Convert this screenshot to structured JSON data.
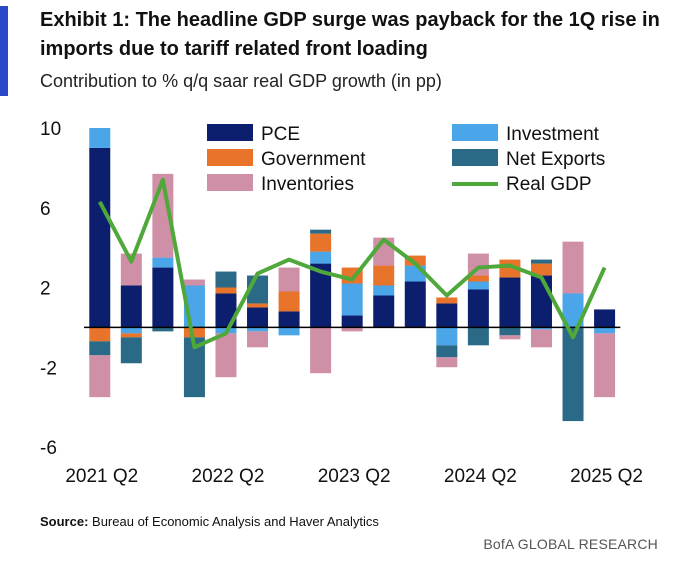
{
  "header": {
    "title": "Exhibit 1: The headline GDP surge was payback for the 1Q rise in imports due to tariff related front loading",
    "subtitle": "Contribution to % q/q saar real GDP growth (in pp)"
  },
  "footer": {
    "source_label": "Source:",
    "source_text": "Bureau of Economic Analysis and Haver Analytics",
    "brand": "BofA GLOBAL RESEARCH"
  },
  "colors": {
    "accent": "#2a49c8",
    "PCE": "#0c1f6e",
    "Investment": "#4aa6e8",
    "Government": "#e8732a",
    "Net Exports": "#2a6a86",
    "Inventories": "#cf8fa6",
    "Real GDP": "#4fa83a"
  },
  "chart_data": {
    "type": "bar",
    "stacked": true,
    "categories": [
      "2021 Q2",
      "2021 Q3",
      "2021 Q4",
      "2022 Q1",
      "2022 Q2",
      "2022 Q3",
      "2022 Q4",
      "2023 Q1",
      "2023 Q2",
      "2023 Q3",
      "2023 Q4",
      "2024 Q1",
      "2024 Q2",
      "2024 Q3",
      "2024 Q4",
      "2025 Q1",
      "2025 Q2"
    ],
    "x_tick_labels": [
      "2021 Q2",
      "2022 Q2",
      "2023 Q2",
      "2024 Q2",
      "2025 Q2"
    ],
    "y_ticks": [
      10,
      6,
      2,
      -2,
      -6
    ],
    "ylim": [
      -6,
      10
    ],
    "legend_placement": "top",
    "series": [
      {
        "name": "PCE",
        "values": [
          9.0,
          2.1,
          3.0,
          0.0,
          1.7,
          1.0,
          0.8,
          3.2,
          0.6,
          1.6,
          2.3,
          1.2,
          1.9,
          2.5,
          2.6,
          0.0,
          0.9
        ]
      },
      {
        "name": "Investment",
        "values": [
          1.0,
          -0.3,
          0.5,
          2.1,
          -0.3,
          -0.2,
          -0.4,
          0.6,
          1.6,
          0.5,
          0.8,
          -0.9,
          0.4,
          0.0,
          -0.1,
          1.7,
          -0.3
        ]
      },
      {
        "name": "Government",
        "values": [
          -0.7,
          -0.2,
          0.0,
          -0.5,
          0.3,
          0.2,
          1.0,
          0.9,
          0.8,
          1.0,
          0.5,
          0.3,
          0.3,
          0.9,
          0.6,
          0.0,
          0.0
        ]
      },
      {
        "name": "Net Exports",
        "values": [
          -0.7,
          -1.3,
          -0.2,
          -3.0,
          0.8,
          1.4,
          0.0,
          0.2,
          0.0,
          0.0,
          0.0,
          -0.6,
          -0.9,
          -0.4,
          0.2,
          -4.7,
          0.0
        ]
      },
      {
        "name": "Inventories",
        "values": [
          -2.1,
          1.6,
          4.2,
          0.3,
          -2.2,
          -0.8,
          1.2,
          -2.3,
          -0.2,
          1.4,
          0.0,
          -0.5,
          1.1,
          -0.2,
          -0.9,
          2.6,
          -3.2
        ]
      },
      {
        "name": "Real GDP",
        "type": "line",
        "values": [
          6.3,
          3.3,
          7.4,
          -1.0,
          -0.3,
          2.7,
          3.4,
          2.8,
          2.4,
          4.4,
          3.2,
          1.6,
          3.0,
          3.1,
          2.5,
          -0.5,
          3.0
        ]
      }
    ]
  }
}
